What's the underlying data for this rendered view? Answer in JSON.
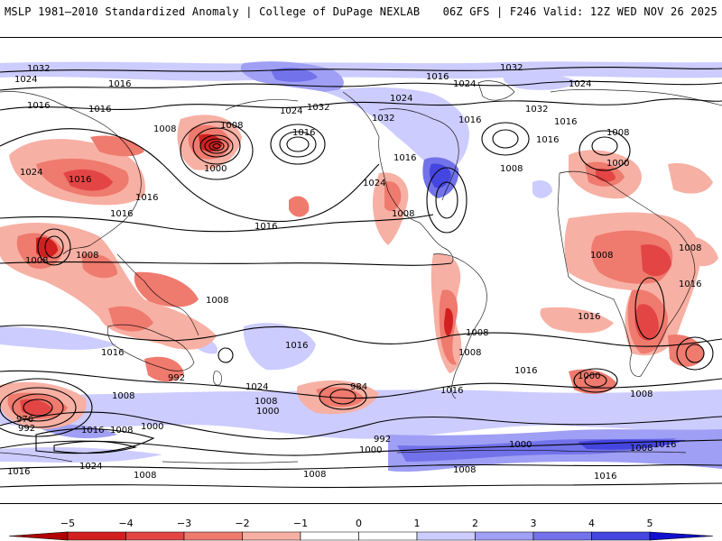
{
  "header": {
    "left": "MSLP 1981–2010 Standardized Anomaly | College of DuPage NEXLAB",
    "right": "06Z GFS | F246 Valid: 12Z WED NOV 26 2025"
  },
  "map": {
    "isobar_labels": [
      "1032",
      "1024",
      "1016",
      "1016",
      "1024",
      "1008",
      "1000",
      "1016",
      "1016",
      "1008",
      "1016",
      "1024",
      "1016",
      "1024",
      "1032",
      "1032",
      "1016",
      "1032",
      "1024",
      "1032",
      "1024",
      "1016",
      "1016",
      "1016",
      "1016",
      "1008",
      "1000",
      "1008",
      "1024",
      "1008",
      "1008",
      "1016",
      "1008",
      "1008",
      "1008",
      "1008",
      "1008",
      "1016",
      "1016",
      "1008",
      "1016",
      "992",
      "1008",
      "1024",
      "1000",
      "1008",
      "1016",
      "984",
      "1016",
      "1000",
      "1008",
      "1016",
      "1016",
      "976",
      "992",
      "1016",
      "1008",
      "1000",
      "1024",
      "1008",
      "1000",
      "992",
      "1016",
      "1016",
      "1008",
      "1000",
      "1008",
      "1008",
      "1016"
    ],
    "shading": "MSLP standardized anomaly"
  },
  "colorbar": {
    "ticks": [
      "−5",
      "−4",
      "−3",
      "−2",
      "−1",
      "0",
      "1",
      "2",
      "3",
      "4",
      "5"
    ],
    "colors": [
      "#b10000",
      "#d22020",
      "#e34545",
      "#ef7a6e",
      "#f7b0a4",
      "#ffffff",
      "#ffffff",
      "#ccccff",
      "#9f9ff5",
      "#7272ea",
      "#4545e0",
      "#1010d0"
    ]
  }
}
